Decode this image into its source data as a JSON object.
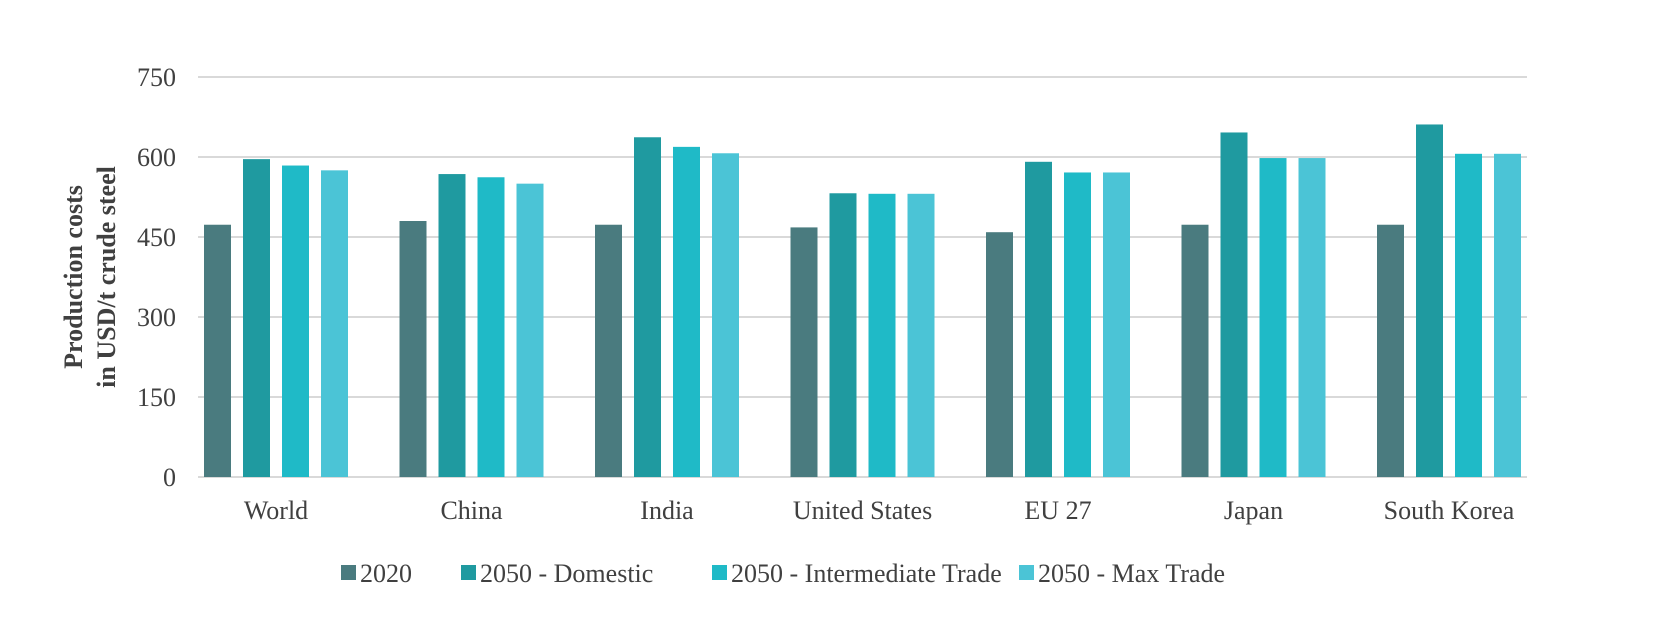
{
  "chart_data": {
    "type": "bar",
    "title": "",
    "xlabel": "",
    "ylabel_lines": [
      "Production costs",
      "in USD/t crude steel"
    ],
    "ylim": [
      0,
      750
    ],
    "yticks": [
      0,
      150,
      300,
      450,
      600,
      750
    ],
    "ytick_labels": [
      "0",
      "150",
      "300",
      "450",
      "600",
      "750"
    ],
    "grid": true,
    "legend_position": "bottom",
    "categories": [
      "World",
      "China",
      "India",
      "United States",
      "EU 27",
      "Japan",
      "South Korea"
    ],
    "series": [
      {
        "name": "2020",
        "color": "#4a7b7f",
        "values": [
          473,
          480,
          473,
          468,
          459,
          473,
          473
        ]
      },
      {
        "name": "2050 - Domestic",
        "color": "#1f9aa0",
        "values": [
          596,
          568,
          637,
          532,
          591,
          646,
          661
        ]
      },
      {
        "name": "2050 - Intermediate Trade",
        "color": "#1fbac7",
        "values": [
          584,
          562,
          619,
          531,
          571,
          598,
          606
        ]
      },
      {
        "name": "2050 - Max Trade",
        "color": "#4bc4d6",
        "values": [
          575,
          550,
          607,
          531,
          571,
          598,
          606
        ]
      }
    ]
  }
}
